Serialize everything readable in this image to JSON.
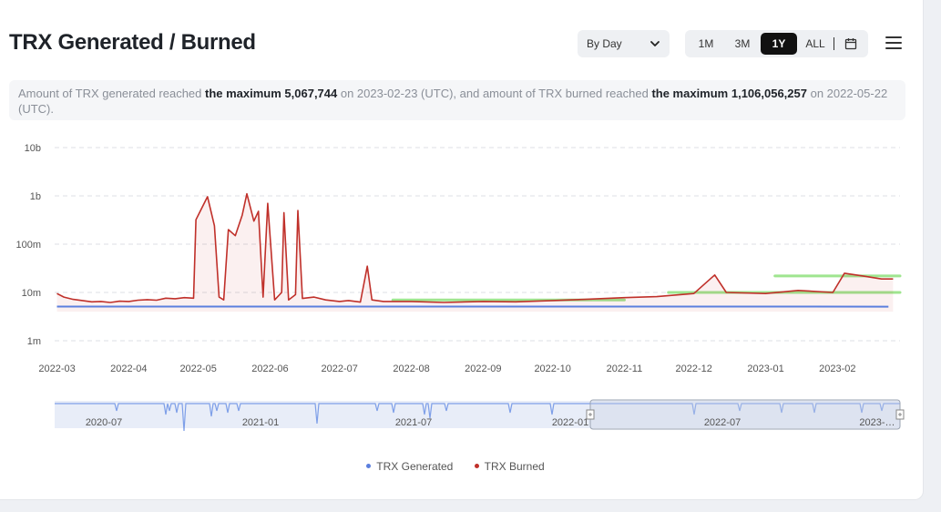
{
  "title": "TRX Generated / Burned",
  "interval_select": {
    "value": "By Day"
  },
  "range_buttons": [
    "1M",
    "3M",
    "1Y",
    "ALL"
  ],
  "active_range": "1Y",
  "description": {
    "p1": "Amount of TRX generated reached ",
    "b1": "the maximum 5,067,744",
    "p2": " on 2023-02-23 (UTC), and amount of TRX burned reached ",
    "b2": "the maximum 1,106,056,257",
    "p3": " on 2022-05-22 (UTC)."
  },
  "colors": {
    "generated": "#5b7fde",
    "burned": "#c0302a",
    "highlight": "#9fe58f",
    "navigator": "#7e9fe8"
  },
  "chart_data": {
    "type": "line",
    "y_scale": "log",
    "ylim": [
      1000000,
      10000000000
    ],
    "y_ticks": [
      {
        "v": 1000000,
        "label": "1m"
      },
      {
        "v": 10000000,
        "label": "10m"
      },
      {
        "v": 100000000,
        "label": "100m"
      },
      {
        "v": 1000000000,
        "label": "1b"
      },
      {
        "v": 10000000000,
        "label": "10b"
      }
    ],
    "xlim": [
      "2022-02-28",
      "2023-02-28"
    ],
    "x_ticks": [
      "2022-03",
      "2022-04",
      "2022-05",
      "2022-06",
      "2022-07",
      "2022-08",
      "2022-09",
      "2022-10",
      "2022-11",
      "2022-12",
      "2023-01",
      "2023-02"
    ],
    "series": [
      {
        "name": "TRX Generated",
        "points": [
          [
            "2022-03-01",
            5100000
          ],
          [
            "2022-04-01",
            5100000
          ],
          [
            "2022-05-01",
            5100000
          ],
          [
            "2022-06-01",
            5100000
          ],
          [
            "2022-07-01",
            5100000
          ],
          [
            "2022-08-01",
            5100000
          ],
          [
            "2022-09-01",
            5100000
          ],
          [
            "2022-10-01",
            5100000
          ],
          [
            "2022-11-01",
            5100000
          ],
          [
            "2022-12-01",
            5100000
          ],
          [
            "2023-01-01",
            5100000
          ],
          [
            "2023-02-23",
            5067744
          ]
        ]
      },
      {
        "name": "TRX Burned",
        "points": [
          [
            "2022-03-01",
            9500000
          ],
          [
            "2022-03-04",
            8000000
          ],
          [
            "2022-03-08",
            7200000
          ],
          [
            "2022-03-12",
            6800000
          ],
          [
            "2022-03-16",
            6400000
          ],
          [
            "2022-03-20",
            6500000
          ],
          [
            "2022-03-24",
            6200000
          ],
          [
            "2022-03-28",
            6600000
          ],
          [
            "2022-04-01",
            6500000
          ],
          [
            "2022-04-05",
            6900000
          ],
          [
            "2022-04-09",
            7100000
          ],
          [
            "2022-04-13",
            6900000
          ],
          [
            "2022-04-17",
            7600000
          ],
          [
            "2022-04-21",
            7400000
          ],
          [
            "2022-04-25",
            7800000
          ],
          [
            "2022-04-29",
            7600000
          ],
          [
            "2022-04-30",
            320000000
          ],
          [
            "2022-05-02",
            500000000
          ],
          [
            "2022-05-05",
            960000000
          ],
          [
            "2022-05-08",
            240000000
          ],
          [
            "2022-05-10",
            8000000
          ],
          [
            "2022-05-12",
            7000000
          ],
          [
            "2022-05-14",
            200000000
          ],
          [
            "2022-05-17",
            150000000
          ],
          [
            "2022-05-20",
            400000000
          ],
          [
            "2022-05-22",
            1106056257
          ],
          [
            "2022-05-25",
            300000000
          ],
          [
            "2022-05-27",
            480000000
          ],
          [
            "2022-05-29",
            8000000
          ],
          [
            "2022-05-31",
            700000000
          ],
          [
            "2022-06-03",
            7000000
          ],
          [
            "2022-06-06",
            10000000
          ],
          [
            "2022-06-07",
            450000000
          ],
          [
            "2022-06-09",
            7000000
          ],
          [
            "2022-06-12",
            9000000
          ],
          [
            "2022-06-13",
            500000000
          ],
          [
            "2022-06-15",
            7500000
          ],
          [
            "2022-06-20",
            8000000
          ],
          [
            "2022-06-25",
            7000000
          ],
          [
            "2022-07-01",
            6500000
          ],
          [
            "2022-07-05",
            6800000
          ],
          [
            "2022-07-10",
            6300000
          ],
          [
            "2022-07-13",
            35000000
          ],
          [
            "2022-07-15",
            7000000
          ],
          [
            "2022-07-20",
            6500000
          ],
          [
            "2022-08-01",
            6500000
          ],
          [
            "2022-08-15",
            6200000
          ],
          [
            "2022-09-01",
            6500000
          ],
          [
            "2022-09-15",
            6400000
          ],
          [
            "2022-10-01",
            6800000
          ],
          [
            "2022-10-15",
            7200000
          ],
          [
            "2022-11-01",
            7800000
          ],
          [
            "2022-11-15",
            8200000
          ],
          [
            "2022-12-01",
            9500000
          ],
          [
            "2022-12-10",
            23000000
          ],
          [
            "2022-12-15",
            10000000
          ],
          [
            "2023-01-01",
            9500000
          ],
          [
            "2023-01-15",
            11000000
          ],
          [
            "2023-01-30",
            10000000
          ],
          [
            "2023-02-04",
            25000000
          ],
          [
            "2023-02-12",
            22000000
          ],
          [
            "2023-02-20",
            19000000
          ],
          [
            "2023-02-25",
            19000000
          ]
        ]
      }
    ],
    "highlight_ranges": [
      {
        "from": "2022-07-24",
        "to": "2022-11-01",
        "y": 7000000
      },
      {
        "from": "2022-11-20",
        "to": "2023-02-28",
        "y": 10000000
      },
      {
        "from": "2023-01-05",
        "to": "2023-02-28",
        "y": 22000000
      }
    ]
  },
  "navigator": {
    "labels": [
      "2020-07",
      "2021-01",
      "2021-07",
      "2022-01",
      "2022-07",
      "2023-…"
    ]
  },
  "legend": [
    {
      "name": "TRX Generated"
    },
    {
      "name": "TRX Burned"
    }
  ]
}
